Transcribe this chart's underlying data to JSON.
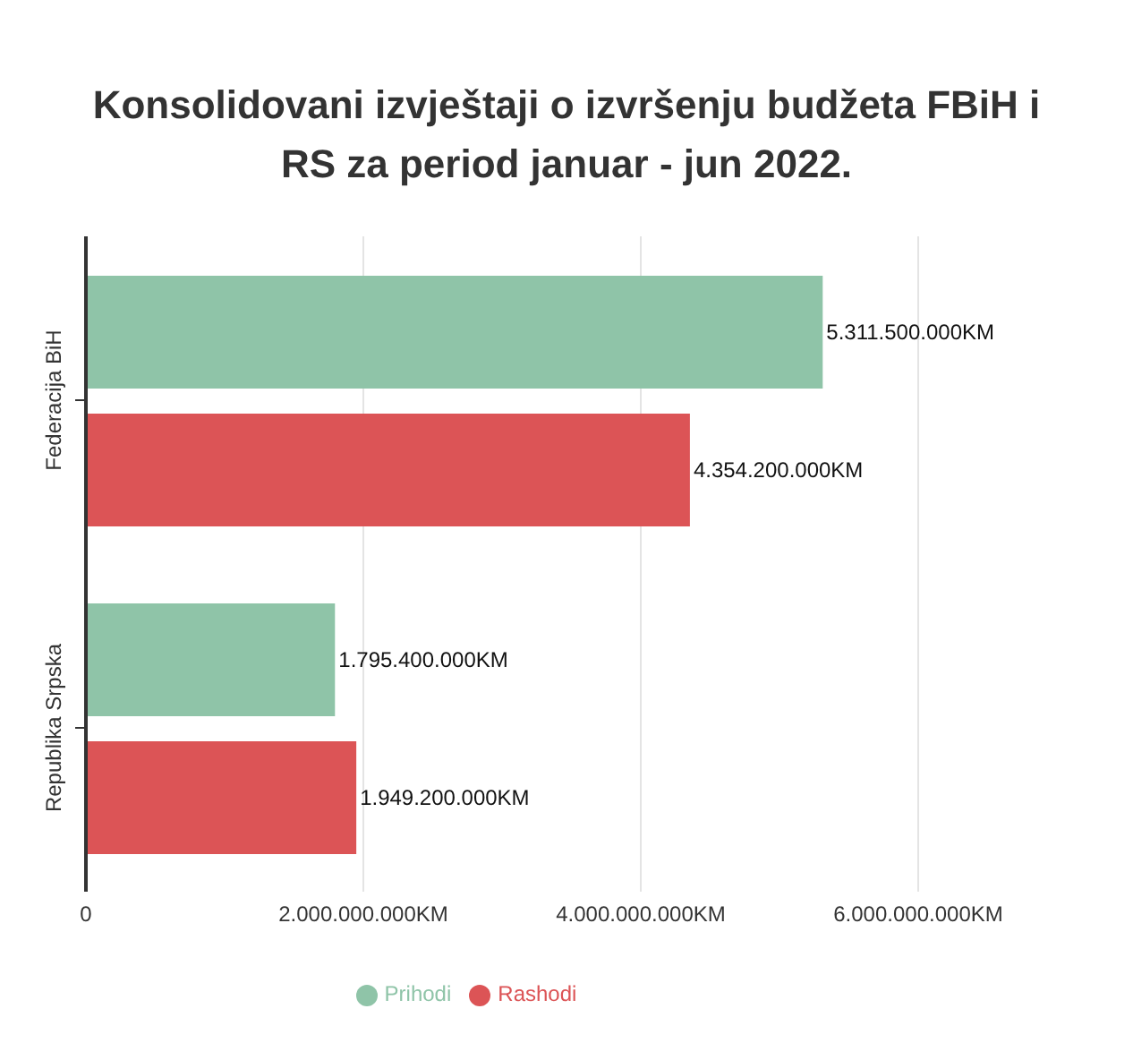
{
  "chart_data": {
    "type": "bar",
    "orientation": "horizontal",
    "title": "Konsolidovani izvještaji o izvršenju budžeta FBiH i RS za period januar - jun 2022.",
    "categories": [
      "Federacija BiH",
      "Republika Srpska"
    ],
    "series": [
      {
        "name": "Prihodi",
        "color": "#8fc4a8",
        "values": [
          5311500000,
          1795400000
        ],
        "value_labels": [
          "5.311.500.000KM",
          "1.795.400.000KM"
        ]
      },
      {
        "name": "Rashodi",
        "color": "#dc5456",
        "values": [
          4354200000,
          1949200000
        ],
        "value_labels": [
          "4.354.200.000KM",
          "1.949.200.000KM"
        ]
      }
    ],
    "xlim": [
      0,
      6000000000
    ],
    "xticks": [
      {
        "value": 0,
        "label": "0"
      },
      {
        "value": 2000000000,
        "label": "2.000.000.000KM"
      },
      {
        "value": 4000000000,
        "label": "4.000.000.000KM"
      },
      {
        "value": 6000000000,
        "label": "6.000.000.000KM"
      }
    ],
    "grid": "x",
    "legend": "bottom"
  }
}
